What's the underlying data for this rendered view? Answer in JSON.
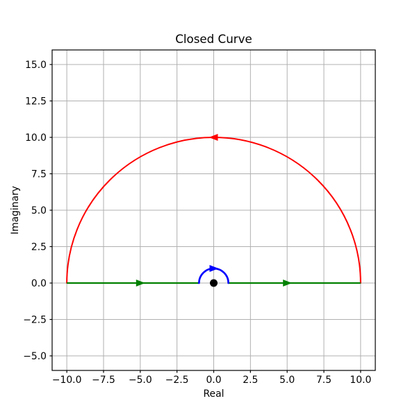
{
  "chart_data": {
    "type": "line",
    "title": "Closed Curve",
    "xlabel": "Real",
    "ylabel": "Imaginary",
    "xlim": [
      -11,
      11
    ],
    "ylim": [
      -6,
      16
    ],
    "grid": true,
    "grid_color": "#b0b0b0",
    "background": "#ffffff",
    "spine_color": "#000000",
    "x_tick_values": [
      -10,
      -7.5,
      -5,
      -2.5,
      0,
      2.5,
      5,
      7.5,
      10
    ],
    "x_tick_labels": [
      "−10.0",
      "−7.5",
      "−5.0",
      "−2.5",
      "0.0",
      "2.5",
      "5.0",
      "7.5",
      "10.0"
    ],
    "y_tick_values": [
      -5,
      -2.5,
      0,
      2.5,
      5,
      7.5,
      10,
      12.5,
      15
    ],
    "y_tick_labels": [
      "−5.0",
      "−2.5",
      "0.0",
      "2.5",
      "5.0",
      "7.5",
      "10.0",
      "12.5",
      "15.0"
    ],
    "series": [
      {
        "name": "outer-semicircle",
        "kind": "arc",
        "center": [
          0,
          0
        ],
        "radius": 10,
        "half": "upper",
        "color": "#ff0000",
        "linewidth": 2,
        "arrows": [
          {
            "at": [
              0,
              10
            ],
            "angle_deg": 180
          }
        ]
      },
      {
        "name": "real-axis-left-segment",
        "kind": "segment",
        "from": [
          -10,
          0
        ],
        "to": [
          -1,
          0
        ],
        "color": "#008000",
        "linewidth": 2.2,
        "arrows": [
          {
            "at": [
              -5,
              0
            ],
            "angle_deg": 0
          }
        ]
      },
      {
        "name": "real-axis-right-segment",
        "kind": "segment",
        "from": [
          1,
          0
        ],
        "to": [
          10,
          0
        ],
        "color": "#008000",
        "linewidth": 2.2,
        "arrows": [
          {
            "at": [
              5,
              0
            ],
            "angle_deg": 0
          }
        ]
      },
      {
        "name": "pole-indent-semicircle",
        "kind": "arc",
        "center": [
          0,
          0
        ],
        "radius": 1,
        "half": "upper",
        "color": "#0000ff",
        "linewidth": 2.6,
        "arrows": [
          {
            "at": [
              0,
              1
            ],
            "angle_deg": 0
          }
        ]
      },
      {
        "name": "origin-pole-marker",
        "kind": "point",
        "at": [
          0,
          0
        ],
        "color": "#000000",
        "radius_px": 5.5
      }
    ]
  }
}
